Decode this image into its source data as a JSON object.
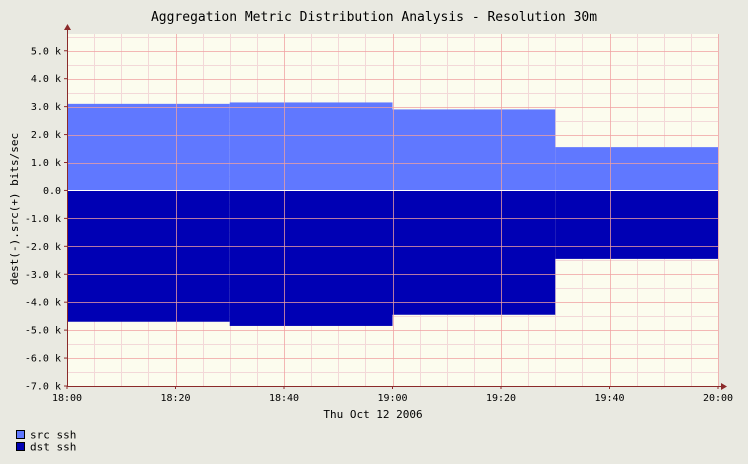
{
  "chart_data": {
    "type": "area",
    "title": "Aggregation Metric Distribution Analysis - Resolution 30m",
    "ylabel": "dest(-).src(+) bits/sec",
    "xlabel": "Thu Oct 12 2006",
    "x_ticks": [
      "18:00",
      "18:20",
      "18:40",
      "19:00",
      "19:20",
      "19:40",
      "20:00"
    ],
    "y_ticks": [
      "5.0 k",
      "4.0 k",
      "3.0 k",
      "2.0 k",
      "1.0 k",
      "0.0",
      "-1.0 k",
      "-2.0 k",
      "-3.0 k",
      "-4.0 k",
      "-5.0 k",
      "-6.0 k",
      "-7.0 k"
    ],
    "y_tick_values": [
      5000,
      4000,
      3000,
      2000,
      1000,
      0,
      -1000,
      -2000,
      -3000,
      -4000,
      -5000,
      -6000,
      -7000
    ],
    "x_range_minutes": [
      0,
      120
    ],
    "ylim": [
      -7000,
      5600
    ],
    "grid": true,
    "legend_position": "bottom-left",
    "series": [
      {
        "name": "src ssh",
        "color": "#6078ff",
        "step": true,
        "x_minutes": [
          0,
          30,
          60,
          90
        ],
        "interval_minutes": 30,
        "values": [
          3100,
          3150,
          2900,
          1550
        ]
      },
      {
        "name": "dst ssh",
        "color": "#0000b4",
        "step": true,
        "x_minutes": [
          0,
          30,
          60,
          90
        ],
        "interval_minutes": 30,
        "values": [
          -4700,
          -4850,
          -4450,
          -2450
        ]
      }
    ],
    "colors": {
      "background": "#e9e9e1",
      "plot_background": "#fcfcee",
      "grid_major": "#f0a0a0",
      "grid_minor": "#f3d8d8",
      "axis": "#8b2a2a",
      "text": "#000000"
    }
  }
}
